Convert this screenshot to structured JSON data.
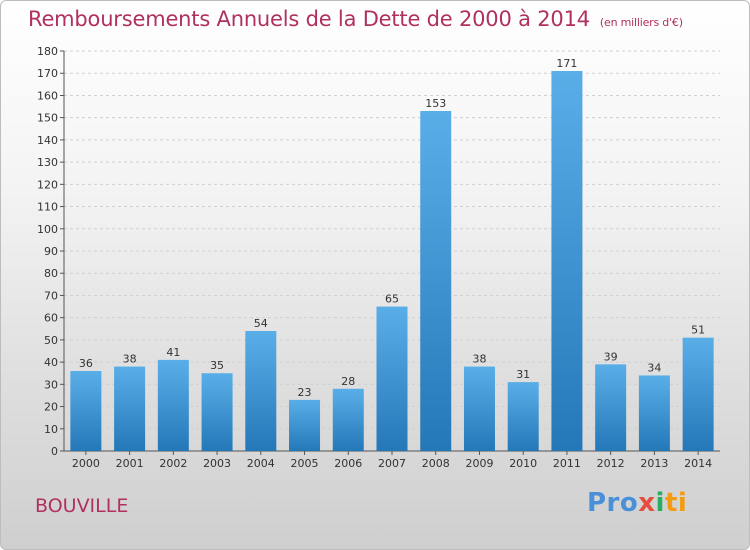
{
  "header": {
    "title": "Remboursements Annuels de la Dette de 2000 à 2014",
    "subtitle": "(en milliers d'€)"
  },
  "commune": "BOUVILLE",
  "logo": {
    "text": "Proxiti",
    "letters": [
      "Pro",
      "x",
      "i",
      "ti"
    ]
  },
  "colors": {
    "title": "#b03060",
    "bar_top": "#5aaee8",
    "bar_bottom": "#2478b8",
    "grid": "#d0d0d0"
  },
  "chart_data": {
    "type": "bar",
    "title": "Remboursements Annuels de la Dette de 2000 à 2014",
    "subtitle": "(en milliers d'€)",
    "categories": [
      "2000",
      "2001",
      "2002",
      "2003",
      "2004",
      "2005",
      "2006",
      "2007",
      "2008",
      "2009",
      "2010",
      "2011",
      "2012",
      "2013",
      "2014"
    ],
    "values": [
      36,
      38,
      41,
      35,
      54,
      23,
      28,
      65,
      153,
      38,
      31,
      171,
      39,
      34,
      51
    ],
    "ylim": [
      0,
      180
    ],
    "ytick_step": 10,
    "grid": true,
    "data_labels": true,
    "xlabel": "",
    "ylabel": ""
  }
}
